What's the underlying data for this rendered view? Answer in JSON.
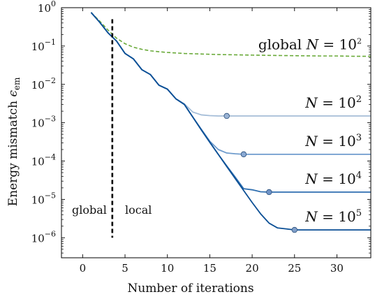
{
  "chart_data": {
    "type": "line",
    "xlabel": "Number of iterations",
    "ylabel": "Energy mismatch ϵem",
    "ylabel_main": "Energy mismatch ",
    "ylabel_sym": "ϵ",
    "ylabel_sub": "em",
    "xlim": [
      -2.5,
      34
    ],
    "ylim": [
      3e-07,
      1.0
    ],
    "yscale": "log",
    "grid": false,
    "xticks": [
      0,
      5,
      10,
      15,
      20,
      25,
      30
    ],
    "xtick_labels": [
      "0",
      "5",
      "10",
      "15",
      "20",
      "25",
      "30"
    ],
    "yticks": [
      1,
      0.1,
      0.01,
      0.001,
      0.0001,
      1e-05,
      1e-06
    ],
    "ytick_labels": [
      {
        "base": "10",
        "exp": "0"
      },
      {
        "base": "10",
        "exp": "−1"
      },
      {
        "base": "10",
        "exp": "−2"
      },
      {
        "base": "10",
        "exp": "−3"
      },
      {
        "base": "10",
        "exp": "−4"
      },
      {
        "base": "10",
        "exp": "−5"
      },
      {
        "base": "10",
        "exp": "−6"
      }
    ],
    "divider": {
      "x": 3.5,
      "y_top": 0.5,
      "y_bottom": 1e-06
    },
    "annotations": {
      "left": "global",
      "right": "local"
    },
    "series": [
      {
        "label": {
          "prefix": "global ",
          "var": "N",
          "eq": " = ",
          "base": "10",
          "exp": "2"
        },
        "style": "dashed",
        "color": "#6aaa3a",
        "x": [
          1,
          2,
          3,
          4,
          5,
          6,
          7,
          8,
          9,
          10,
          12,
          14,
          16,
          18,
          20,
          22,
          25,
          28,
          30,
          32,
          34
        ],
        "y": [
          0.75,
          0.45,
          0.26,
          0.16,
          0.115,
          0.093,
          0.082,
          0.075,
          0.071,
          0.068,
          0.064,
          0.062,
          0.06,
          0.059,
          0.058,
          0.057,
          0.056,
          0.055,
          0.055,
          0.054,
          0.054
        ]
      },
      {
        "label": {
          "prefix": "",
          "var": "N",
          "eq": " = ",
          "base": "10",
          "exp": "2"
        },
        "style": "solid",
        "color": "#a5bdd8",
        "marker_color": "#9ab3d4",
        "x": [
          1,
          2,
          3,
          4,
          5,
          6,
          7,
          8,
          9,
          10,
          11,
          12,
          13,
          14,
          15,
          16,
          17
        ],
        "y": [
          0.75,
          0.42,
          0.22,
          0.135,
          0.064,
          0.046,
          0.024,
          0.018,
          0.0095,
          0.0075,
          0.0042,
          0.0031,
          0.0019,
          0.0016,
          0.00153,
          0.0015,
          0.0015
        ],
        "marker_x": 17,
        "marker_y": 0.0015,
        "tail_to": 34
      },
      {
        "label": {
          "prefix": "",
          "var": "N",
          "eq": " = ",
          "base": "10",
          "exp": "3"
        },
        "style": "solid",
        "color": "#6f9ccd",
        "marker_color": "#8aa9d3",
        "x": [
          1,
          2,
          3,
          4,
          5,
          6,
          7,
          8,
          9,
          10,
          11,
          12,
          13,
          14,
          15,
          16,
          17,
          18,
          19
        ],
        "y": [
          0.75,
          0.42,
          0.22,
          0.135,
          0.064,
          0.046,
          0.024,
          0.018,
          0.0095,
          0.0075,
          0.0042,
          0.003,
          0.0014,
          0.00068,
          0.00033,
          0.0002,
          0.000162,
          0.000155,
          0.00015
        ],
        "marker_x": 19,
        "marker_y": 0.00015,
        "tail_to": 34
      },
      {
        "label": {
          "prefix": "",
          "var": "N",
          "eq": " = ",
          "base": "10",
          "exp": "4"
        },
        "style": "solid",
        "color": "#2f6fb0",
        "marker_color": "#6f93c7",
        "x": [
          1,
          2,
          3,
          4,
          5,
          6,
          7,
          8,
          9,
          10,
          11,
          12,
          13,
          14,
          15,
          16,
          17,
          18,
          19,
          20,
          21,
          22
        ],
        "y": [
          0.75,
          0.42,
          0.22,
          0.135,
          0.064,
          0.046,
          0.024,
          0.018,
          0.0095,
          0.0075,
          0.0042,
          0.003,
          0.0014,
          0.00065,
          0.00031,
          0.00015,
          7.5e-05,
          3.8e-05,
          1.9e-05,
          1.78e-05,
          1.58e-05,
          1.55e-05
        ],
        "marker_x": 22,
        "marker_y": 1.55e-05,
        "tail_to": 34
      },
      {
        "label": {
          "prefix": "",
          "var": "N",
          "eq": " = ",
          "base": "10",
          "exp": "5"
        },
        "style": "solid",
        "color": "#0b4f95",
        "marker_color": "#7f9ec9",
        "x": [
          1,
          2,
          3,
          4,
          5,
          6,
          7,
          8,
          9,
          10,
          11,
          12,
          13,
          14,
          15,
          16,
          17,
          18,
          19,
          20,
          21,
          22,
          23,
          24,
          25
        ],
        "y": [
          0.75,
          0.42,
          0.22,
          0.135,
          0.064,
          0.046,
          0.024,
          0.018,
          0.0095,
          0.0075,
          0.0042,
          0.003,
          0.0014,
          0.00065,
          0.00031,
          0.00015,
          7.2e-05,
          3.5e-05,
          1.7e-05,
          8.3e-06,
          4.2e-06,
          2.4e-06,
          1.8e-06,
          1.7e-06,
          1.6e-06
        ],
        "marker_x": 25,
        "marker_y": 1.6e-06,
        "tail_to": 34
      }
    ]
  }
}
